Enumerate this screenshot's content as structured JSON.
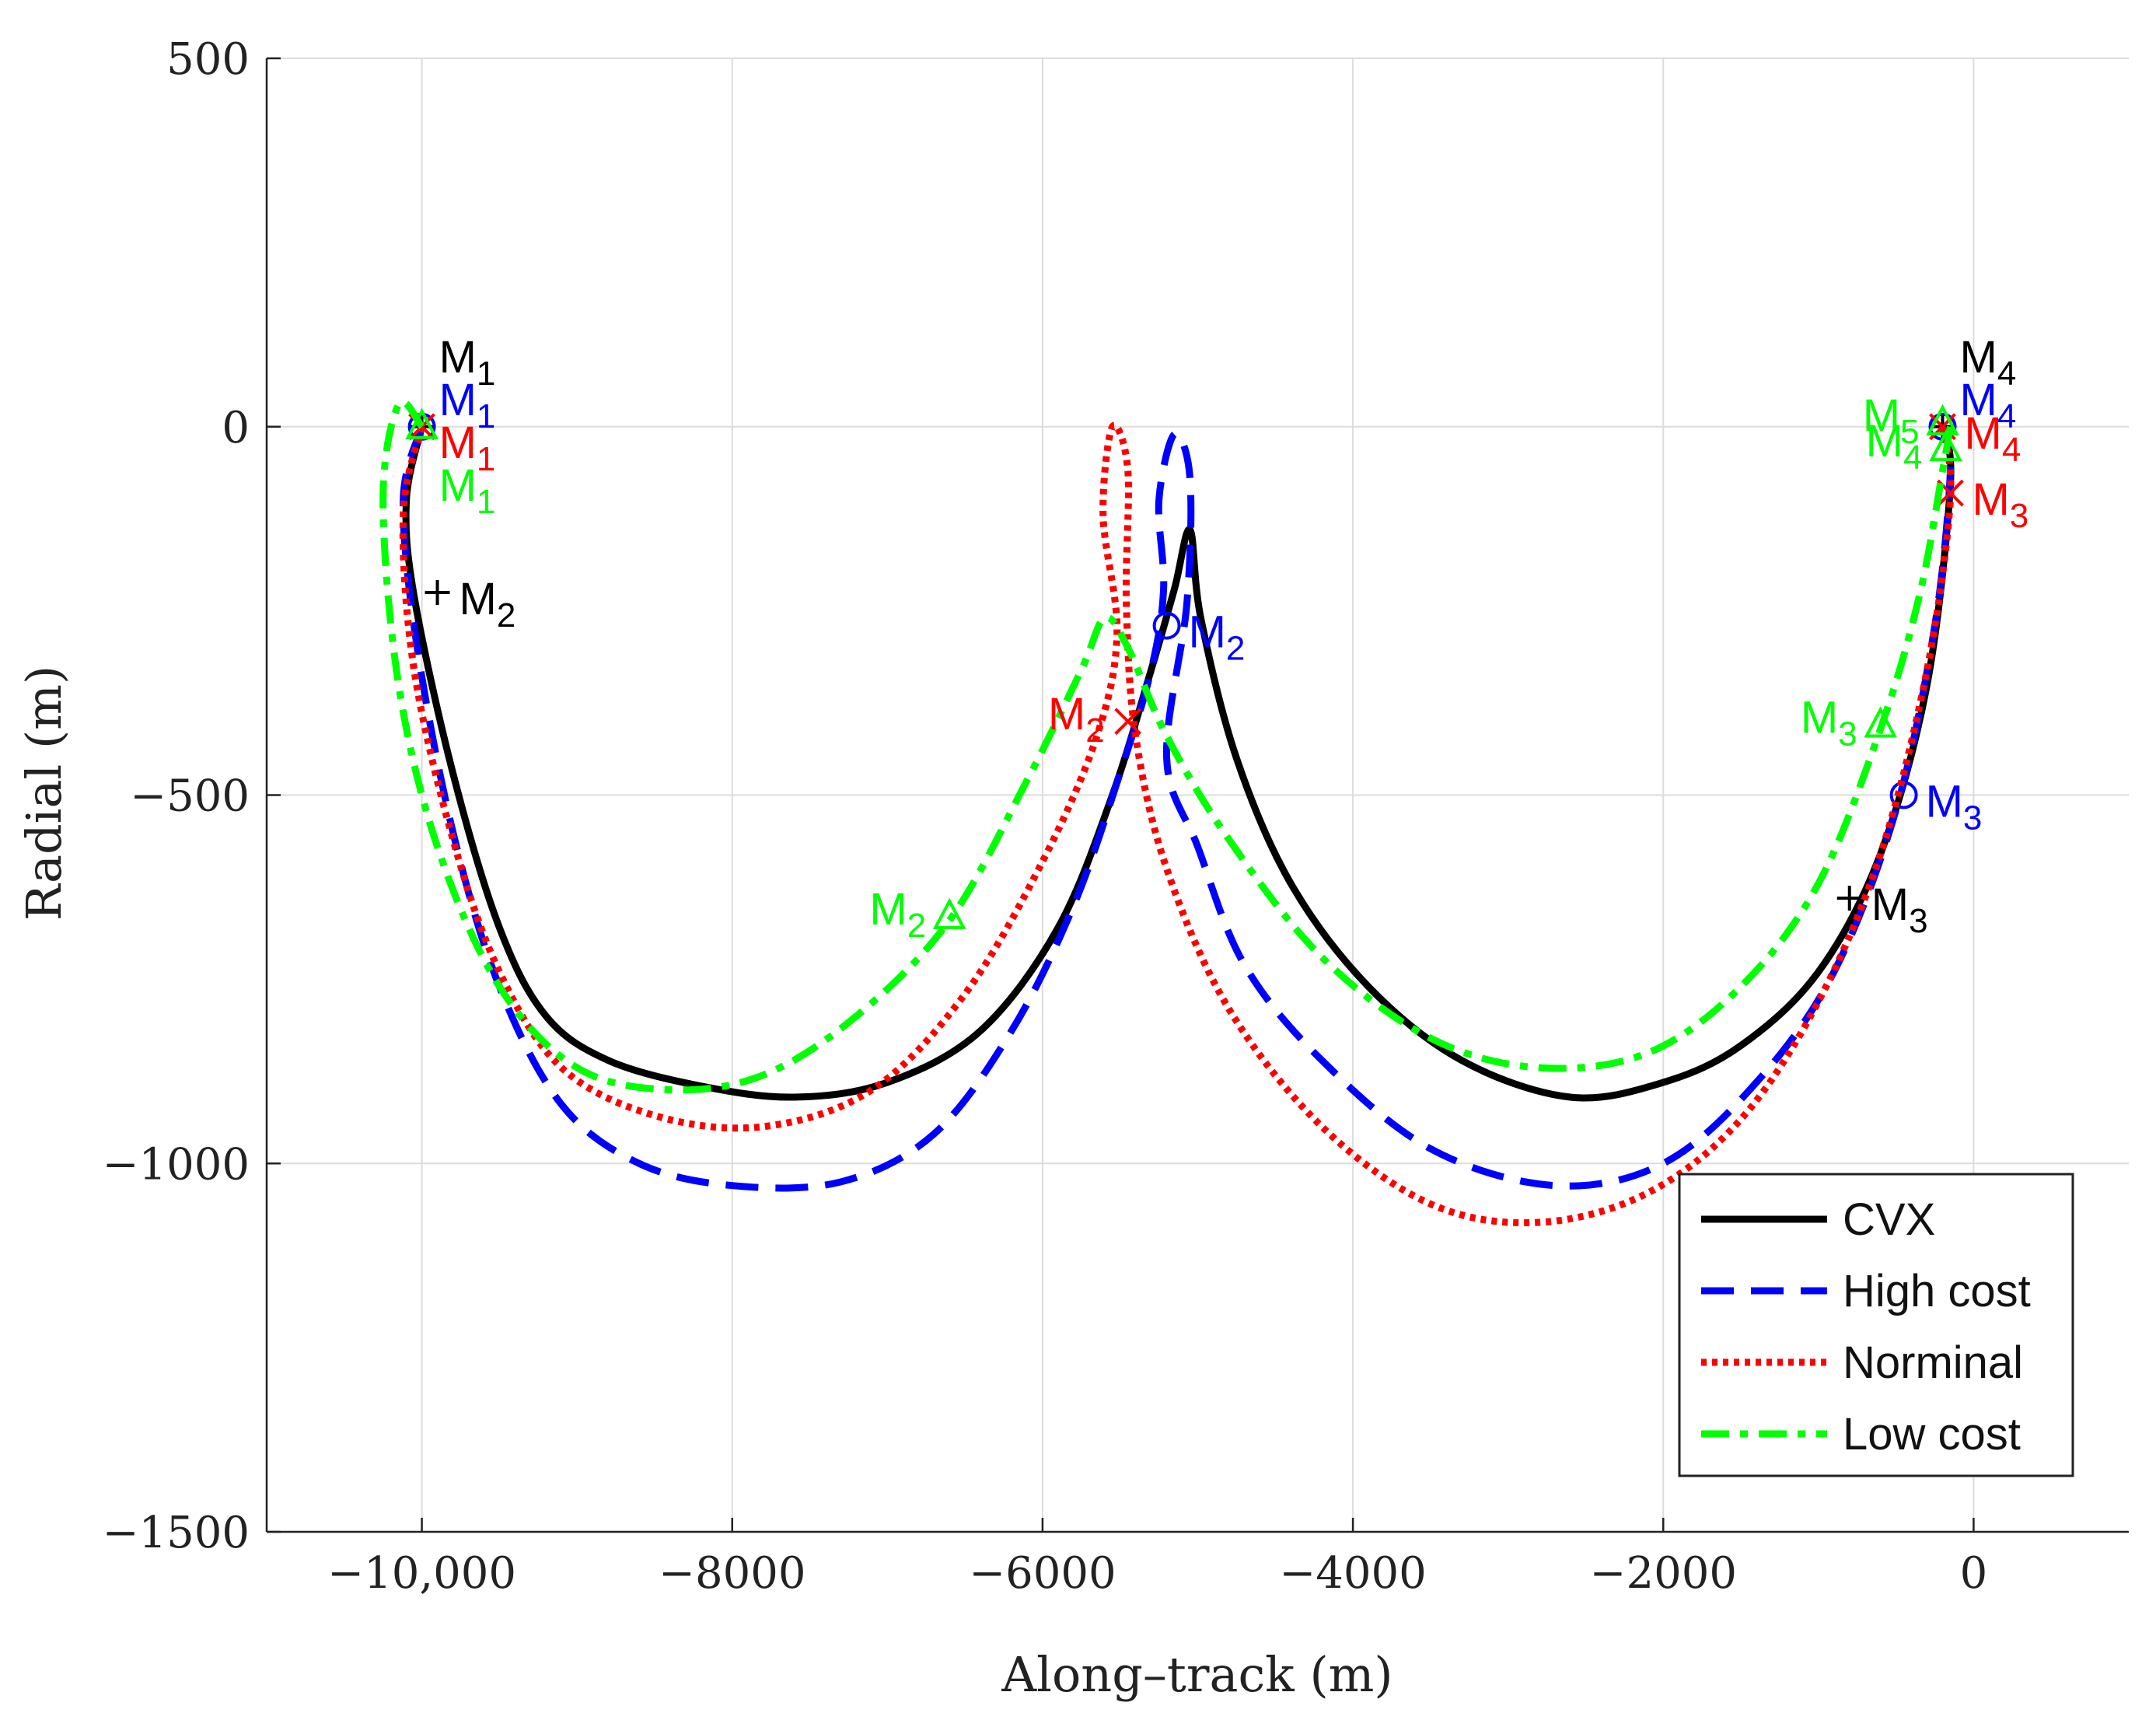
{
  "chart_data": {
    "type": "line",
    "title": "",
    "xlabel": "Along–track (m)",
    "ylabel": "Radial (m)",
    "xlim": [
      -11000,
      1000
    ],
    "ylim": [
      -1500,
      500
    ],
    "grid": true,
    "xticks": [
      -10000,
      -8000,
      -6000,
      -4000,
      -2000,
      0
    ],
    "xtick_labels": [
      "−10,000",
      "−8000",
      "−6000",
      "−4000",
      "−2000",
      "0"
    ],
    "yticks": [
      500,
      0,
      -500,
      -1000,
      -1500
    ],
    "ytick_labels": [
      "500",
      "0",
      "−500",
      "−1000",
      "−1500"
    ],
    "legend_location": "bottom-right",
    "series": [
      {
        "name": "CVX",
        "color": "#000000",
        "style": "solid",
        "marker": "plus",
        "points": [
          [
            -10000,
            0
          ],
          [
            -10100,
            -100
          ],
          [
            -10050,
            -230
          ],
          [
            -9800,
            -470
          ],
          [
            -9500,
            -680
          ],
          [
            -9200,
            -800
          ],
          [
            -8800,
            -860
          ],
          [
            -8200,
            -895
          ],
          [
            -7600,
            -910
          ],
          [
            -7000,
            -890
          ],
          [
            -6400,
            -820
          ],
          [
            -5900,
            -680
          ],
          [
            -5550,
            -500
          ],
          [
            -5300,
            -330
          ],
          [
            -5150,
            -220
          ],
          [
            -5050,
            -140
          ],
          [
            -4980,
            -260
          ],
          [
            -4750,
            -450
          ],
          [
            -4400,
            -620
          ],
          [
            -3900,
            -760
          ],
          [
            -3300,
            -860
          ],
          [
            -2600,
            -910
          ],
          [
            -2000,
            -890
          ],
          [
            -1500,
            -840
          ],
          [
            -1000,
            -740
          ],
          [
            -600,
            -580
          ],
          [
            -300,
            -350
          ],
          [
            -150,
            -80
          ],
          [
            -200,
            0
          ]
        ],
        "maneuvers": [
          {
            "label": "M",
            "sub": "1",
            "x": -10000,
            "y": 0,
            "text_pos": "above"
          },
          {
            "label": "M",
            "sub": "2",
            "x": -9900,
            "y": -225,
            "text_pos": "right"
          },
          {
            "label": "M",
            "sub": "3",
            "x": -800,
            "y": -640,
            "text_pos": "right"
          },
          {
            "label": "M",
            "sub": "4",
            "x": -200,
            "y": 0,
            "text_pos": "above"
          }
        ]
      },
      {
        "name": "High cost",
        "color": "#0000ff",
        "style": "dashed",
        "marker": "circle",
        "points": [
          [
            -10000,
            0
          ],
          [
            -10120,
            -100
          ],
          [
            -10030,
            -300
          ],
          [
            -9800,
            -550
          ],
          [
            -9500,
            -760
          ],
          [
            -9100,
            -920
          ],
          [
            -8600,
            -1000
          ],
          [
            -8000,
            -1030
          ],
          [
            -7300,
            -1025
          ],
          [
            -6700,
            -960
          ],
          [
            -6200,
            -820
          ],
          [
            -5800,
            -650
          ],
          [
            -5500,
            -470
          ],
          [
            -5300,
            -330
          ],
          [
            -5220,
            -220
          ],
          [
            -5250,
            -100
          ],
          [
            -5150,
            -10
          ],
          [
            -5050,
            -70
          ],
          [
            -5070,
            -240
          ],
          [
            -5200,
            -450
          ],
          [
            -5000,
            -570
          ],
          [
            -4700,
            -730
          ],
          [
            -4200,
            -860
          ],
          [
            -3500,
            -980
          ],
          [
            -2700,
            -1030
          ],
          [
            -2000,
            -1000
          ],
          [
            -1400,
            -890
          ],
          [
            -900,
            -740
          ],
          [
            -500,
            -520
          ],
          [
            -250,
            -270
          ],
          [
            -150,
            -60
          ],
          [
            -200,
            0
          ]
        ],
        "maneuvers": [
          {
            "label": "M",
            "sub": "1",
            "x": -10000,
            "y": 0,
            "text_pos": "above"
          },
          {
            "label": "M",
            "sub": "2",
            "x": -5200,
            "y": -270,
            "text_pos": "right"
          },
          {
            "label": "M",
            "sub": "3",
            "x": -450,
            "y": -500,
            "text_pos": "right"
          },
          {
            "label": "M",
            "sub": "4",
            "x": -200,
            "y": 0,
            "text_pos": "above"
          }
        ]
      },
      {
        "name": "Norminal",
        "color": "#ff0000",
        "style": "dotted",
        "marker": "cross",
        "points": [
          [
            -10000,
            0
          ],
          [
            -10120,
            -120
          ],
          [
            -10050,
            -330
          ],
          [
            -9800,
            -560
          ],
          [
            -9500,
            -740
          ],
          [
            -9100,
            -870
          ],
          [
            -8500,
            -935
          ],
          [
            -7800,
            -950
          ],
          [
            -7100,
            -900
          ],
          [
            -6500,
            -770
          ],
          [
            -6000,
            -590
          ],
          [
            -5650,
            -420
          ],
          [
            -5520,
            -280
          ],
          [
            -5610,
            -120
          ],
          [
            -5550,
            0
          ],
          [
            -5450,
            -60
          ],
          [
            -5460,
            -240
          ],
          [
            -5400,
            -420
          ],
          [
            -5200,
            -600
          ],
          [
            -4800,
            -790
          ],
          [
            -4200,
            -950
          ],
          [
            -3500,
            -1055
          ],
          [
            -2800,
            -1080
          ],
          [
            -2100,
            -1040
          ],
          [
            -1500,
            -940
          ],
          [
            -1000,
            -780
          ],
          [
            -600,
            -580
          ],
          [
            -300,
            -330
          ],
          [
            -150,
            -100
          ],
          [
            -200,
            0
          ]
        ],
        "maneuvers": [
          {
            "label": "M",
            "sub": "1",
            "x": -10000,
            "y": 0,
            "text_pos": "above"
          },
          {
            "label": "M",
            "sub": "2",
            "x": -5450,
            "y": -400,
            "text_pos": "left"
          },
          {
            "label": "M",
            "sub": "3",
            "x": -150,
            "y": -90,
            "text_pos": "right"
          },
          {
            "label": "M",
            "sub": "4",
            "x": -200,
            "y": 0,
            "text_pos": "right"
          }
        ]
      },
      {
        "name": "Low cost",
        "color": "#00ff00",
        "style": "dashdot",
        "marker": "triangle",
        "points": [
          [
            -10000,
            0
          ],
          [
            -10150,
            30
          ],
          [
            -10250,
            -100
          ],
          [
            -10150,
            -350
          ],
          [
            -9900,
            -570
          ],
          [
            -9500,
            -760
          ],
          [
            -9000,
            -870
          ],
          [
            -8400,
            -900
          ],
          [
            -7800,
            -880
          ],
          [
            -7200,
            -800
          ],
          [
            -6600,
            -670
          ],
          [
            -6100,
            -480
          ],
          [
            -5750,
            -330
          ],
          [
            -5600,
            -260
          ],
          [
            -5450,
            -300
          ],
          [
            -5200,
            -420
          ],
          [
            -4800,
            -560
          ],
          [
            -4200,
            -720
          ],
          [
            -3500,
            -830
          ],
          [
            -2800,
            -870
          ],
          [
            -2100,
            -850
          ],
          [
            -1500,
            -760
          ],
          [
            -1000,
            -620
          ],
          [
            -600,
            -410
          ],
          [
            -350,
            -230
          ],
          [
            -200,
            -60
          ],
          [
            -150,
            0
          ]
        ],
        "maneuvers": [
          {
            "label": "M",
            "sub": "1",
            "x": -10000,
            "y": 0,
            "text_pos": "above"
          },
          {
            "label": "M",
            "sub": "2",
            "x": -6600,
            "y": -665,
            "text_pos": "left"
          },
          {
            "label": "M",
            "sub": "3",
            "x": -600,
            "y": -405,
            "text_pos": "left"
          },
          {
            "label": "M",
            "sub": "4",
            "x": -180,
            "y": -30,
            "text_pos": "left"
          },
          {
            "label": "M",
            "sub": "5",
            "x": -200,
            "y": 5,
            "text_pos": "left"
          }
        ]
      }
    ]
  }
}
